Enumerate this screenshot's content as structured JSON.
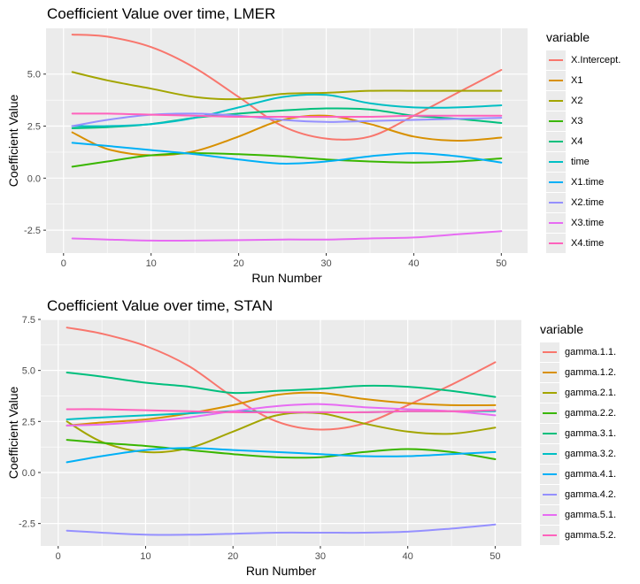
{
  "chart_data": [
    {
      "type": "line",
      "title": "Coefficient Value over time, LMER",
      "xlabel": "Run Number",
      "ylabel": "Coefficient Value",
      "xlim": [
        -2,
        53
      ],
      "ylim": [
        -3.6,
        7.2
      ],
      "xticks": [
        0,
        10,
        20,
        30,
        40,
        50
      ],
      "xtick_labels": [
        "0",
        "10",
        "20",
        "30",
        "40",
        "50"
      ],
      "yticks": [
        -2.5,
        0.0,
        2.5,
        5.0
      ],
      "ytick_labels": [
        "-2.5",
        "0.0",
        "2.5",
        "5.0"
      ],
      "grid": true,
      "legend_title": "variable",
      "legend_position": "right",
      "x": [
        1,
        5,
        10,
        15,
        20,
        25,
        30,
        35,
        40,
        45,
        50
      ],
      "series": [
        {
          "name": "X.Intercept.",
          "color": "#F8766D",
          "values": [
            6.9,
            6.8,
            6.3,
            5.3,
            3.9,
            2.5,
            1.9,
            2.0,
            3.0,
            4.1,
            5.2
          ]
        },
        {
          "name": "X1",
          "color": "#D89000",
          "values": [
            2.2,
            1.4,
            1.1,
            1.3,
            2.0,
            2.8,
            3.0,
            2.6,
            2.0,
            1.8,
            1.95
          ]
        },
        {
          "name": "X2",
          "color": "#A3A500",
          "values": [
            5.1,
            4.7,
            4.3,
            3.9,
            3.8,
            4.05,
            4.1,
            4.2,
            4.2,
            4.2,
            4.2
          ]
        },
        {
          "name": "X3",
          "color": "#39B600",
          "values": [
            0.55,
            0.8,
            1.1,
            1.2,
            1.15,
            1.05,
            0.9,
            0.8,
            0.75,
            0.8,
            0.95
          ]
        },
        {
          "name": "X4",
          "color": "#00BF7D",
          "values": [
            2.4,
            2.45,
            2.6,
            2.9,
            3.1,
            3.25,
            3.35,
            3.3,
            3.0,
            2.85,
            2.65
          ]
        },
        {
          "name": "time",
          "color": "#00BFC4",
          "values": [
            2.5,
            2.5,
            2.6,
            2.9,
            3.4,
            3.9,
            4.0,
            3.6,
            3.4,
            3.4,
            3.5
          ]
        },
        {
          "name": "X1.time",
          "color": "#00B0F6",
          "values": [
            1.7,
            1.55,
            1.35,
            1.15,
            0.9,
            0.7,
            0.8,
            1.05,
            1.2,
            1.05,
            0.75
          ]
        },
        {
          "name": "X2.time",
          "color": "#9590FF",
          "values": [
            2.5,
            2.8,
            3.05,
            3.1,
            3.0,
            2.8,
            2.7,
            2.75,
            2.8,
            2.85,
            2.9
          ]
        },
        {
          "name": "X3.time",
          "color": "#E76BF3",
          "values": [
            -2.9,
            -2.95,
            -3.0,
            -3.0,
            -2.98,
            -2.95,
            -2.95,
            -2.9,
            -2.85,
            -2.7,
            -2.55
          ]
        },
        {
          "name": "X4.time",
          "color": "#FF62BC",
          "values": [
            3.1,
            3.1,
            3.05,
            3.0,
            2.95,
            2.95,
            2.95,
            2.95,
            3.0,
            3.0,
            3.0
          ]
        }
      ]
    },
    {
      "type": "line",
      "title": "Coefficient Value over time, STAN",
      "xlabel": "Run Number",
      "ylabel": "Coefficient Value",
      "xlim": [
        -2,
        53
      ],
      "ylim": [
        -3.6,
        7.5
      ],
      "xticks": [
        0,
        10,
        20,
        30,
        40,
        50
      ],
      "xtick_labels": [
        "0",
        "10",
        "20",
        "30",
        "40",
        "50"
      ],
      "yticks": [
        -2.5,
        0.0,
        2.5,
        5.0,
        7.5
      ],
      "ytick_labels": [
        "-2.5",
        "0.0",
        "2.5",
        "5.0",
        "7.5"
      ],
      "grid": true,
      "legend_title": "variable",
      "legend_position": "right",
      "x": [
        1,
        5,
        10,
        15,
        20,
        25,
        30,
        35,
        40,
        45,
        50
      ],
      "series": [
        {
          "name": "gamma.1.1.",
          "color": "#F8766D",
          "values": [
            7.1,
            6.8,
            6.2,
            5.2,
            3.7,
            2.5,
            2.1,
            2.4,
            3.3,
            4.3,
            5.4
          ]
        },
        {
          "name": "gamma.1.2.",
          "color": "#D89000",
          "values": [
            2.3,
            2.45,
            2.6,
            2.9,
            3.3,
            3.8,
            3.9,
            3.6,
            3.4,
            3.3,
            3.3
          ]
        },
        {
          "name": "gamma.2.1.",
          "color": "#A3A500",
          "values": [
            2.5,
            1.5,
            1.0,
            1.2,
            2.0,
            2.8,
            2.9,
            2.4,
            2.0,
            1.9,
            2.2
          ]
        },
        {
          "name": "gamma.2.2.",
          "color": "#39B600",
          "values": [
            1.6,
            1.45,
            1.3,
            1.1,
            0.9,
            0.75,
            0.75,
            1.0,
            1.15,
            1.0,
            0.65
          ]
        },
        {
          "name": "gamma.3.1.",
          "color": "#00BF7D",
          "values": [
            4.9,
            4.7,
            4.4,
            4.2,
            3.9,
            4.0,
            4.1,
            4.25,
            4.2,
            4.0,
            3.7
          ]
        },
        {
          "name": "gamma.3.2.",
          "color": "#00BFC4",
          "values": [
            2.6,
            2.7,
            2.8,
            2.9,
            3.0,
            2.95,
            2.95,
            2.95,
            3.0,
            3.0,
            3.0
          ]
        },
        {
          "name": "gamma.4.1.",
          "color": "#00B0F6",
          "values": [
            0.5,
            0.8,
            1.1,
            1.2,
            1.1,
            1.0,
            0.9,
            0.8,
            0.8,
            0.9,
            1.0
          ]
        },
        {
          "name": "gamma.4.2.",
          "color": "#9590FF",
          "values": [
            -2.85,
            -2.95,
            -3.05,
            -3.05,
            -3.0,
            -2.95,
            -2.95,
            -2.95,
            -2.9,
            -2.75,
            -2.55
          ]
        },
        {
          "name": "gamma.5.1.",
          "color": "#E76BF3",
          "values": [
            2.3,
            2.35,
            2.5,
            2.7,
            3.0,
            3.25,
            3.35,
            3.2,
            3.1,
            3.0,
            2.8
          ]
        },
        {
          "name": "gamma.5.2.",
          "color": "#FF62BC",
          "values": [
            3.1,
            3.1,
            3.05,
            3.0,
            2.95,
            2.95,
            2.95,
            2.95,
            3.0,
            3.0,
            3.05
          ]
        }
      ]
    }
  ]
}
